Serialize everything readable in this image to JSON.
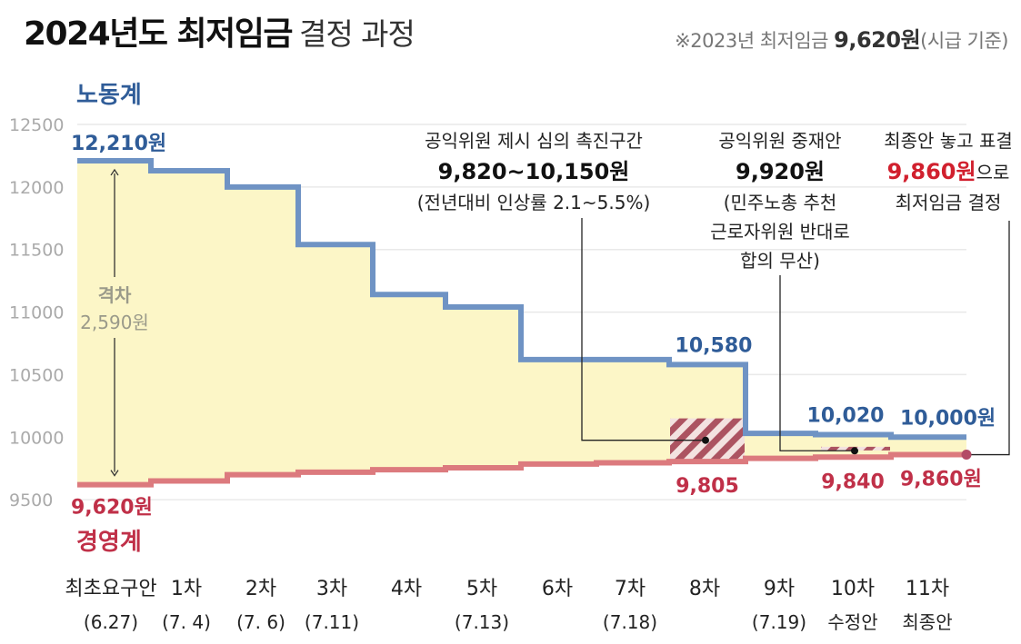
{
  "header": {
    "title_bold": "2024년도 최저임금",
    "title_light": "결정 과정",
    "note_prefix": "※2023년 최저임금 ",
    "note_value": "9,620원",
    "note_suffix": "(시급 기준)"
  },
  "chart_data": {
    "type": "line",
    "title": "2024년도 최저임금 결정 과정",
    "ylim": [
      9450,
      12580
    ],
    "yticks": [
      9500,
      10000,
      10500,
      11000,
      11500,
      12000,
      12500
    ],
    "categories": [
      {
        "label": "최초요구안",
        "sub": "(6.27)"
      },
      {
        "label": "1차",
        "sub": "(7. 4)"
      },
      {
        "label": "2차",
        "sub": "(7. 6)"
      },
      {
        "label": "3차",
        "sub": "(7.11)"
      },
      {
        "label": "4차",
        "sub": ""
      },
      {
        "label": "5차",
        "sub": "(7.13)"
      },
      {
        "label": "6차",
        "sub": ""
      },
      {
        "label": "7차",
        "sub": "(7.18)"
      },
      {
        "label": "8차",
        "sub": ""
      },
      {
        "label": "9차",
        "sub": "(7.19)"
      },
      {
        "label": "10차",
        "sub": "수정안"
      },
      {
        "label": "11차",
        "sub": "최종안"
      }
    ],
    "series": [
      {
        "name": "노동계",
        "color": "#6f93c4",
        "label_color": "#2f5c98",
        "values": [
          12210,
          12130,
          12000,
          11540,
          11140,
          11040,
          10620,
          10620,
          10580,
          10030,
          10020,
          10000
        ]
      },
      {
        "name": "경영계",
        "color": "#dc7a7e",
        "label_color": "#c03048",
        "values": [
          9620,
          9650,
          9700,
          9720,
          9740,
          9755,
          9785,
          9795,
          9805,
          9830,
          9840,
          9860
        ]
      }
    ],
    "value_labels": {
      "labor_first": "12,210원",
      "labor_8": "10,580",
      "labor_10": "10,020",
      "labor_11": "10,000원",
      "mgmt_first": "9,620원",
      "mgmt_8": "9,805",
      "mgmt_10": "9,840",
      "mgmt_11": "9,860원"
    },
    "gap": {
      "label": "격차",
      "value": "2,590원",
      "amount": 2590
    },
    "promotion_range": [
      9820,
      10150
    ],
    "mediation_value": 9920,
    "final_value": 9860,
    "annotations": {
      "promo_line1": "공익위원 제시 심의 촉진구간",
      "promo_line2": "9,820~10,150원",
      "promo_line3": "(전년대비 인상률 2.1~5.5%)",
      "med_line1": "공익위원 중재안",
      "med_line2": "9,920원",
      "med_line3": "(민주노총 추천",
      "med_line4": "근로자위원 반대로",
      "med_line5": "합의 무산)",
      "final_line1": "최종안 놓고 표결",
      "final_value_text": "9,860원",
      "final_suffix": "으로",
      "final_line3": "최저임금 결정"
    }
  }
}
